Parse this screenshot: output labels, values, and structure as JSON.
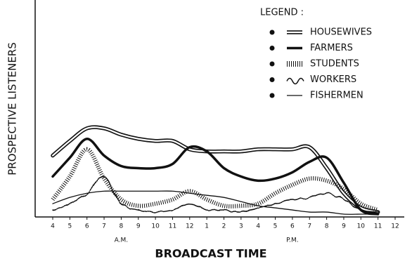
{
  "chart_data": {
    "type": "line",
    "legend_title": "LEGEND :",
    "y_label": "PROSPECTIVE LISTENERS",
    "x_label": "BROADCAST TIME",
    "annotations": [
      "A.M.",
      "P.M."
    ],
    "categories": [
      "4",
      "5",
      "6",
      "7",
      "8",
      "9",
      "10",
      "11",
      "12",
      "1",
      "2",
      "3",
      "4",
      "5",
      "6",
      "7",
      "8",
      "9",
      "10",
      "11",
      "12"
    ],
    "ylim": [
      0,
      100
    ],
    "grid": false,
    "legend": "top-right",
    "series": [
      {
        "name": "HOUSEWIVES",
        "color": "#111111",
        "style": "double",
        "values": [
          29,
          36,
          42,
          42,
          39,
          37,
          36,
          36,
          32,
          31,
          31,
          31,
          32,
          32,
          32,
          33,
          23,
          11,
          4,
          2,
          null
        ]
      },
      {
        "name": "FARMERS",
        "color": "#111111",
        "style": "thick",
        "values": [
          19,
          28,
          37,
          29,
          24,
          23,
          23,
          25,
          33,
          31,
          23,
          19,
          17,
          18,
          21,
          26,
          28,
          16,
          3,
          1,
          null
        ]
      },
      {
        "name": "STUDENTS",
        "color": "#111111",
        "style": "hatched",
        "values": [
          8,
          19,
          32,
          18,
          8,
          5,
          6,
          8,
          12,
          8,
          5,
          5,
          6,
          11,
          15,
          18,
          17,
          13,
          6,
          3,
          null
        ]
      },
      {
        "name": "WORKERS",
        "color": "#111111",
        "style": "wavy",
        "values": [
          3,
          6,
          11,
          19,
          6,
          3,
          2,
          3,
          6,
          3,
          3,
          2,
          4,
          6,
          8,
          9,
          11,
          8,
          3,
          2,
          null
        ]
      },
      {
        "name": "FISHERMEN",
        "color": "#111111",
        "style": "thin",
        "values": [
          6,
          9,
          11,
          12,
          12,
          12,
          12,
          12,
          11,
          10,
          9,
          7,
          5,
          4,
          3,
          2,
          2,
          1,
          1,
          1,
          null
        ]
      }
    ]
  }
}
